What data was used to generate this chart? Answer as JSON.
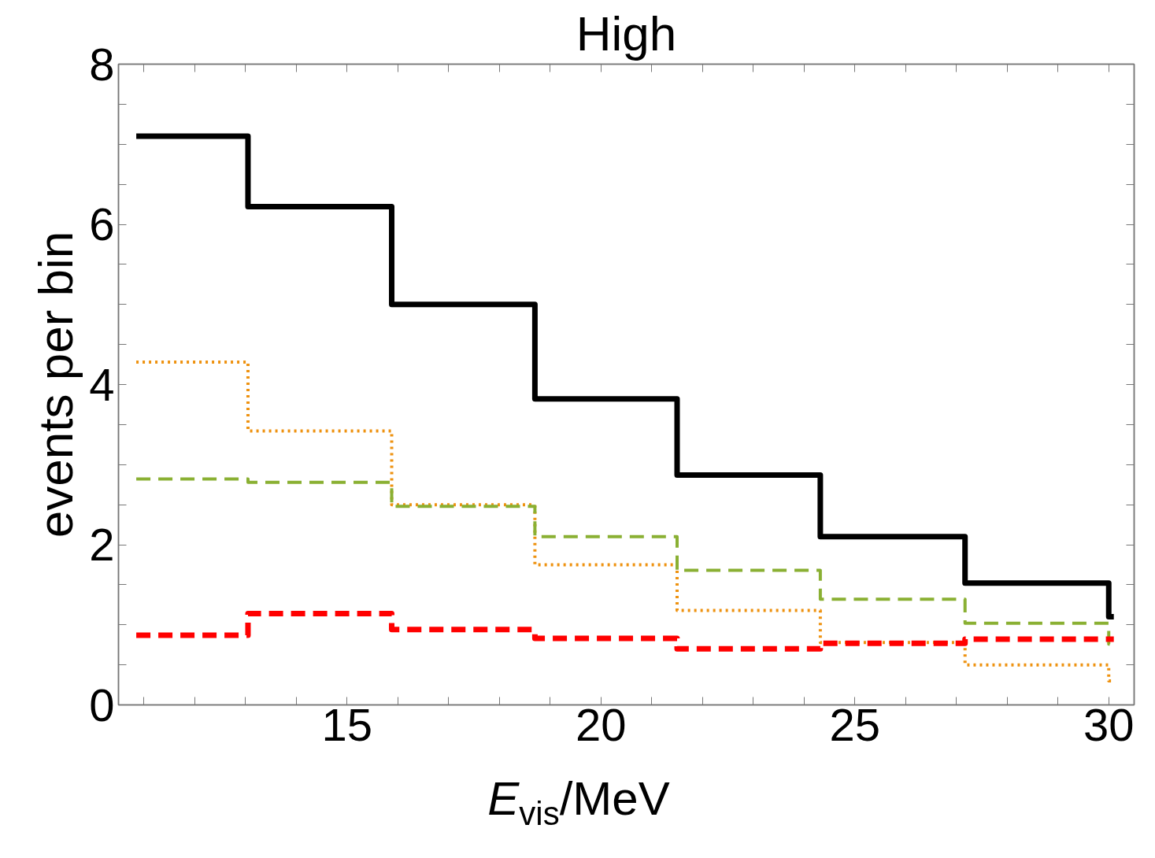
{
  "chart_data": {
    "type": "step",
    "title": "High",
    "xlabel": "E$_{vis}$/MeV",
    "ylabel": "events per bin",
    "xlim": [
      10.5,
      30.5
    ],
    "ylim": [
      0,
      8
    ],
    "xticks": [
      {
        "value": 11,
        "label": null
      },
      {
        "value": 12,
        "label": null
      },
      {
        "value": 13,
        "label": null
      },
      {
        "value": 14,
        "label": null
      },
      15,
      {
        "value": 16,
        "label": null
      },
      {
        "value": 17,
        "label": null
      },
      {
        "value": 18,
        "label": null
      },
      {
        "value": 19,
        "label": null
      },
      20,
      {
        "value": 21,
        "label": null
      },
      {
        "value": 22,
        "label": null
      },
      {
        "value": 23,
        "label": null
      },
      {
        "value": 24,
        "label": null
      },
      25,
      {
        "value": 26,
        "label": null
      },
      {
        "value": 27,
        "label": null
      },
      {
        "value": 28,
        "label": null
      },
      {
        "value": 29,
        "label": null
      },
      30
    ],
    "yticks": [
      0,
      {
        "value": 0.5,
        "label": null
      },
      {
        "value": 1,
        "label": null
      },
      {
        "value": 1.5,
        "label": null
      },
      2,
      {
        "value": 2.5,
        "label": null
      },
      {
        "value": 3,
        "label": null
      },
      {
        "value": 3.5,
        "label": null
      },
      4,
      {
        "value": 4.5,
        "label": null
      },
      {
        "value": 5,
        "label": null
      },
      {
        "value": 5.5,
        "label": null
      },
      6,
      {
        "value": 6.5,
        "label": null
      },
      {
        "value": 7,
        "label": null
      },
      {
        "value": 7.5,
        "label": null
      },
      8
    ],
    "grid": false,
    "x": [
      10.85,
      13.05,
      15.88,
      18.7,
      21.5,
      24.32,
      27.17,
      30.0,
      30.1
    ],
    "series": [
      {
        "color": "#000000",
        "line_style": "solid",
        "values": [
          7.1,
          6.22,
          5.0,
          3.82,
          2.87,
          2.1,
          1.52,
          1.1,
          1.1
        ]
      },
      {
        "color": "#ee9210",
        "line_style": "dotted",
        "values": [
          4.28,
          3.42,
          2.5,
          1.75,
          1.18,
          0.78,
          0.5,
          0.3,
          0.3
        ]
      },
      {
        "color": "#8ab033",
        "line_style": "dashed",
        "values": [
          2.82,
          2.78,
          2.48,
          2.1,
          1.68,
          1.32,
          1.02,
          0.76,
          0.76
        ]
      },
      {
        "color": "#ff0000",
        "line_style": "dashed",
        "values": [
          0.87,
          1.14,
          0.94,
          0.83,
          0.7,
          0.77,
          0.82,
          0.82,
          0.82
        ]
      }
    ]
  }
}
